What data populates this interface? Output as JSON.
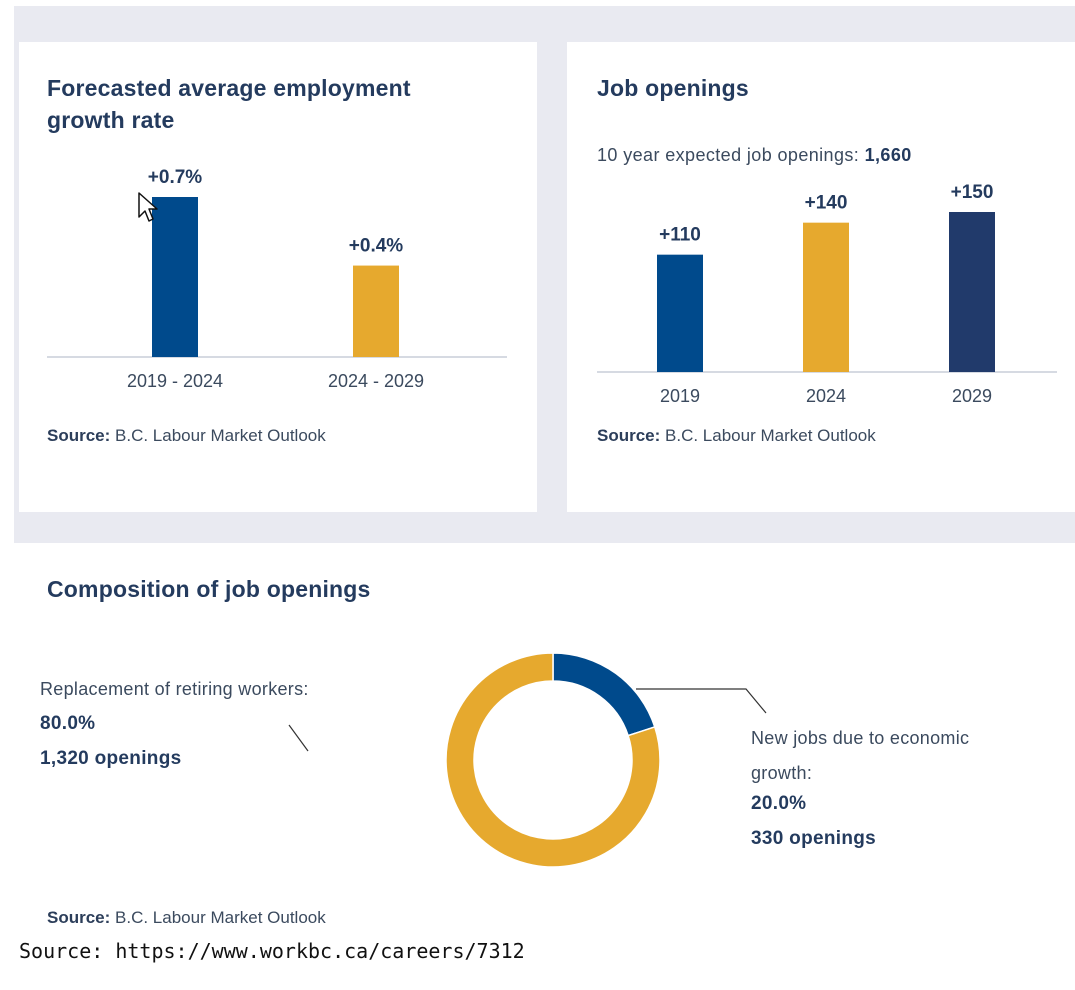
{
  "colors": {
    "blue": "#004a8c",
    "gold": "#e6a92e",
    "navy": "#213a6b",
    "title": "#243b5e",
    "axis": "#c9ced8"
  },
  "cards": {
    "growth": {
      "title_line1": "Forecasted average employment",
      "title_line2": "growth rate",
      "source_label": "Source:",
      "source_text": " B.C. Labour Market Outlook"
    },
    "openings": {
      "title": "Job openings",
      "subtitle_text": "10 year expected job openings: ",
      "subtitle_value": "1,660",
      "source_label": "Source:",
      "source_text": " B.C. Labour Market Outlook"
    },
    "composition": {
      "title": "Composition of job openings",
      "left": {
        "label": "Replacement of retiring workers:",
        "percent": "80.0%",
        "openings": "1,320 openings"
      },
      "right": {
        "label_line1": "New jobs due to economic",
        "label_line2": "growth:",
        "percent": "20.0%",
        "openings": "330 openings"
      },
      "source_label": "Source:",
      "source_text": " B.C. Labour Market Outlook"
    }
  },
  "footer": {
    "url_source": "Source: https://www.workbc.ca/careers/7312"
  },
  "chart_data": [
    {
      "type": "bar",
      "title": "Forecasted average employment growth rate",
      "categories": [
        "2019 - 2024",
        "2024 - 2029"
      ],
      "values": [
        0.7,
        0.4
      ],
      "data_labels": [
        "+0.7%",
        "+0.4%"
      ],
      "colors": [
        "#004a8c",
        "#e6a92e"
      ],
      "ylim": [
        0,
        0.7
      ],
      "grid": false
    },
    {
      "type": "bar",
      "title": "Job openings",
      "categories": [
        "2019",
        "2024",
        "2029"
      ],
      "values": [
        110,
        140,
        150
      ],
      "data_labels": [
        "+110",
        "+140",
        "+150"
      ],
      "colors": [
        "#004a8c",
        "#e6a92e",
        "#213a6b"
      ],
      "ylim": [
        0,
        150
      ],
      "grid": false
    },
    {
      "type": "pie",
      "title": "Composition of job openings",
      "categories": [
        "New jobs due to economic growth",
        "Replacement of retiring workers"
      ],
      "values": [
        20.0,
        80.0
      ],
      "colors": [
        "#004a8c",
        "#e6a92e"
      ]
    }
  ]
}
